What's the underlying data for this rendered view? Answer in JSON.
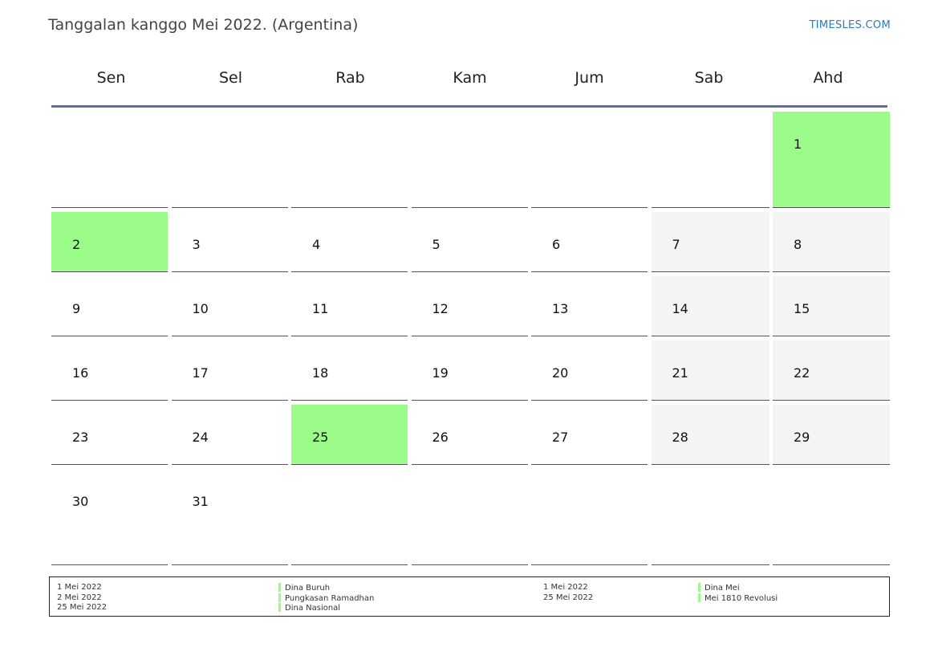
{
  "header": {
    "title": "Tanggalan kanggo Mei 2022. (Argentina)",
    "brand": "TIMESLES.COM"
  },
  "weekdays": [
    "Sen",
    "Sel",
    "Rab",
    "Kam",
    "Jum",
    "Sab",
    "Ahd"
  ],
  "colors": {
    "holiday": "#9cfc8a",
    "weekend": "#f4f4f4",
    "header_rule": "#5b7096",
    "brand": "#2f7ab8"
  },
  "weeks": [
    [
      {
        "day": ""
      },
      {
        "day": ""
      },
      {
        "day": ""
      },
      {
        "day": ""
      },
      {
        "day": ""
      },
      {
        "day": ""
      },
      {
        "day": "1",
        "type": "holiday"
      }
    ],
    [
      {
        "day": "2",
        "type": "holiday"
      },
      {
        "day": "3"
      },
      {
        "day": "4"
      },
      {
        "day": "5"
      },
      {
        "day": "6"
      },
      {
        "day": "7",
        "type": "weekend"
      },
      {
        "day": "8",
        "type": "weekend"
      }
    ],
    [
      {
        "day": "9"
      },
      {
        "day": "10"
      },
      {
        "day": "11"
      },
      {
        "day": "12"
      },
      {
        "day": "13"
      },
      {
        "day": "14",
        "type": "weekend"
      },
      {
        "day": "15",
        "type": "weekend"
      }
    ],
    [
      {
        "day": "16"
      },
      {
        "day": "17"
      },
      {
        "day": "18"
      },
      {
        "day": "19"
      },
      {
        "day": "20"
      },
      {
        "day": "21",
        "type": "weekend"
      },
      {
        "day": "22",
        "type": "weekend"
      }
    ],
    [
      {
        "day": "23"
      },
      {
        "day": "24"
      },
      {
        "day": "25",
        "type": "holiday"
      },
      {
        "day": "26"
      },
      {
        "day": "27"
      },
      {
        "day": "28",
        "type": "weekend"
      },
      {
        "day": "29",
        "type": "weekend"
      }
    ],
    [
      {
        "day": "30"
      },
      {
        "day": "31"
      },
      {
        "day": ""
      },
      {
        "day": ""
      },
      {
        "day": ""
      },
      {
        "day": ""
      },
      {
        "day": ""
      }
    ]
  ],
  "legend": {
    "holidays_dates": [
      "1 Mei 2022",
      "2 Mei 2022",
      "25 Mei 2022"
    ],
    "holidays_names": [
      "Dina Buruh",
      "Pungkasan Ramadhan",
      "Dina Nasional"
    ],
    "observances_dates": [
      "1 Mei 2022",
      "25 Mei 2022"
    ],
    "observances_names": [
      "Dina Mei",
      "Mei 1810 Revolusi"
    ]
  }
}
